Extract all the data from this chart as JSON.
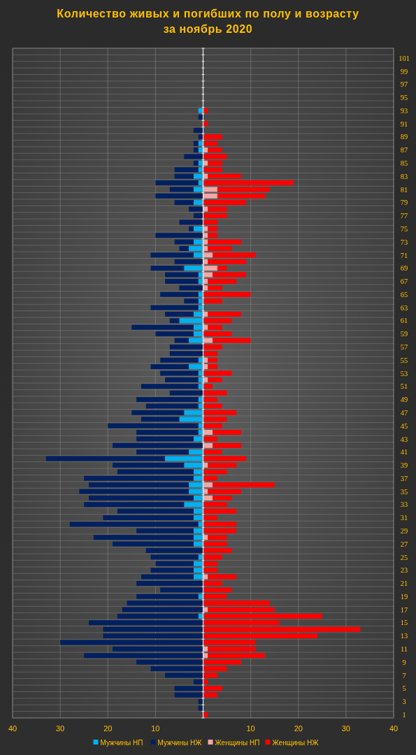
{
  "chart_data": {
    "type": "bar",
    "orientation": "horizontal",
    "stacked": true,
    "title": "Количество живых и погибших по полу и возрасту\nза ноябрь 2020",
    "categories": [
      null,
      "101",
      null,
      "99",
      null,
      "97",
      null,
      "95",
      null,
      "93",
      null,
      "91",
      null,
      "89",
      null,
      "87",
      null,
      "85",
      null,
      "83",
      null,
      "81",
      null,
      "79",
      null,
      "77",
      null,
      "75",
      null,
      "73",
      null,
      "71",
      null,
      "69",
      null,
      "67",
      null,
      "65",
      null,
      "63",
      null,
      "61",
      null,
      "59",
      null,
      "57",
      null,
      "55",
      null,
      "53",
      null,
      "51",
      null,
      "49",
      null,
      "47",
      null,
      "45",
      null,
      "43",
      null,
      "41",
      null,
      "39",
      null,
      "37",
      null,
      "35",
      null,
      "33",
      null,
      "31",
      null,
      "29",
      null,
      "27",
      null,
      "25",
      null,
      "23",
      null,
      "21",
      null,
      "19",
      null,
      "17",
      null,
      "15",
      null,
      "13",
      null,
      "11",
      null,
      "9",
      null,
      "7",
      null,
      "5",
      null,
      "3",
      null,
      "1"
    ],
    "series": [
      {
        "name": "Мужчины НП",
        "color": "#00b0f0",
        "values": [
          null,
          null,
          null,
          null,
          null,
          null,
          null,
          null,
          null,
          -1,
          null,
          null,
          null,
          null,
          -1,
          -1,
          null,
          -1,
          -1,
          -2,
          -1,
          -2,
          null,
          -2,
          null,
          null,
          null,
          -2,
          null,
          -2,
          -3,
          -2,
          null,
          -4,
          -1,
          -1,
          null,
          -1,
          -1,
          -1,
          -2,
          -5,
          -2,
          -2,
          -3,
          null,
          null,
          -1,
          -3,
          -1,
          -1,
          -1,
          null,
          -1,
          -1,
          -4,
          -5,
          -1,
          -1,
          -2,
          null,
          -3,
          -8,
          -4,
          -2,
          -2,
          -3,
          -3,
          -2,
          -4,
          -2,
          -2,
          -1,
          -2,
          -2,
          -2,
          null,
          -1,
          -2,
          -2,
          -2,
          null,
          null,
          -1,
          null,
          null,
          -1,
          null,
          null,
          null,
          null,
          null,
          null,
          null,
          null,
          null,
          null,
          null,
          null,
          null,
          null,
          null
        ]
      },
      {
        "name": "Мужчины НЖ",
        "color": "#002060",
        "values": [
          null,
          null,
          null,
          null,
          null,
          null,
          null,
          null,
          null,
          null,
          -1,
          null,
          -2,
          -1,
          -1,
          -1,
          -4,
          -1,
          -5,
          -4,
          -9,
          -5,
          -10,
          -4,
          -3,
          -2,
          -5,
          -1,
          -10,
          -4,
          -2,
          -9,
          -6,
          -7,
          -7,
          -7,
          -5,
          -8,
          -3,
          -10,
          -6,
          -2,
          -13,
          -8,
          -3,
          -7,
          -7,
          -8,
          -8,
          -8,
          -7,
          -12,
          -7,
          -13,
          -11,
          -11,
          -8,
          -19,
          -13,
          -12,
          -19,
          -11,
          -25,
          -15,
          -16,
          -23,
          -21,
          -23,
          -22,
          -21,
          -16,
          -19,
          -27,
          -12,
          -21,
          -17,
          -12,
          -10,
          -8,
          -9,
          -11,
          -14,
          -9,
          -13,
          -16,
          -17,
          -17,
          -24,
          -21,
          -21,
          -30,
          -19,
          -25,
          -14,
          -11,
          -8,
          -2,
          -6,
          -6,
          -1,
          -1,
          null
        ]
      },
      {
        "name": "Женщины НП",
        "color": "#f4a6a6",
        "values": [
          null,
          null,
          null,
          null,
          null,
          null,
          null,
          null,
          null,
          null,
          null,
          null,
          null,
          null,
          null,
          1,
          null,
          1,
          null,
          1,
          null,
          3,
          3,
          null,
          1,
          null,
          null,
          1,
          1,
          1,
          1,
          2,
          1,
          3,
          2,
          1,
          1,
          null,
          null,
          null,
          1,
          null,
          1,
          null,
          2,
          null,
          null,
          1,
          1,
          null,
          1,
          null,
          null,
          null,
          null,
          null,
          null,
          null,
          2,
          null,
          2,
          null,
          null,
          1,
          null,
          null,
          2,
          1,
          2,
          null,
          null,
          null,
          null,
          null,
          1,
          null,
          null,
          null,
          null,
          null,
          1,
          null,
          null,
          null,
          null,
          1,
          null,
          null,
          null,
          null,
          null,
          1,
          1,
          null,
          null,
          null,
          null,
          null,
          null,
          null,
          null,
          null
        ]
      },
      {
        "name": "Женщины НЖ",
        "color": "#ff0000",
        "values": [
          null,
          null,
          null,
          null,
          null,
          null,
          null,
          null,
          null,
          1,
          null,
          1,
          null,
          4,
          3,
          3,
          5,
          3,
          4,
          7,
          19,
          11,
          10,
          9,
          4,
          5,
          3,
          2,
          2,
          7,
          5,
          9,
          8,
          2,
          7,
          6,
          3,
          10,
          4,
          null,
          7,
          6,
          3,
          6,
          8,
          4,
          3,
          2,
          2,
          6,
          3,
          2,
          5,
          3,
          4,
          7,
          5,
          4,
          6,
          3,
          6,
          4,
          9,
          6,
          5,
          3,
          13,
          7,
          4,
          5,
          7,
          3,
          7,
          7,
          4,
          5,
          6,
          4,
          3,
          3,
          6,
          4,
          6,
          5,
          14,
          14,
          25,
          16,
          33,
          24,
          11,
          10,
          12,
          8,
          5,
          3,
          1,
          4,
          3,
          null,
          null,
          1
        ]
      }
    ],
    "xlim": [
      -40,
      40
    ],
    "xticks": [
      {
        "value": -40,
        "label": "40"
      },
      {
        "value": -30,
        "label": "30"
      },
      {
        "value": -20,
        "label": "20"
      },
      {
        "value": -10,
        "label": "10"
      },
      {
        "value": 0,
        "label": null
      },
      10,
      20,
      30,
      40
    ],
    "grid": true,
    "legend": "bottom"
  }
}
